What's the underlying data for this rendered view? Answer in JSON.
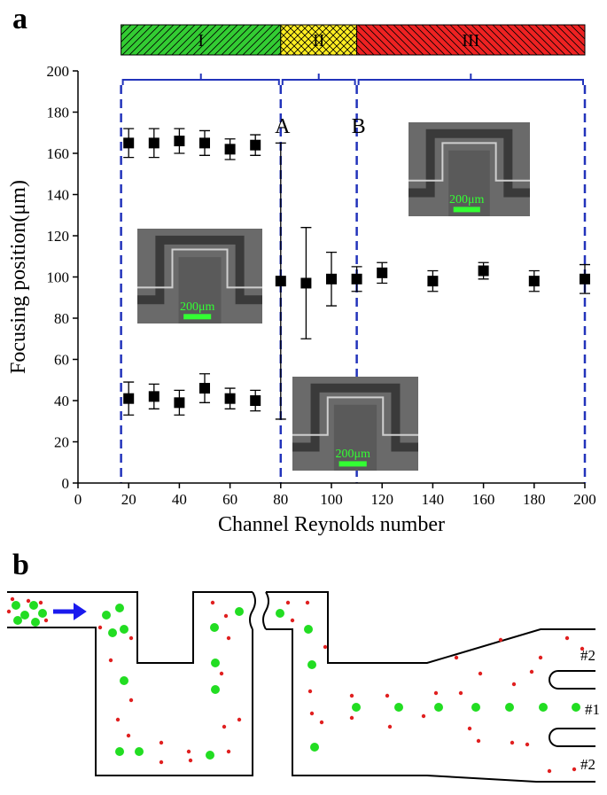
{
  "panel_labels": [
    "a",
    "b"
  ],
  "chart_data": {
    "type": "scatter",
    "x_label": "Channel Reynolds number",
    "y_label": "Focusing position(μm)",
    "xlim": [
      0,
      200
    ],
    "xticks": [
      0,
      20,
      40,
      60,
      80,
      100,
      120,
      140,
      160,
      180,
      200
    ],
    "ylim": [
      0,
      200
    ],
    "yticks": [
      0,
      20,
      40,
      60,
      80,
      100,
      120,
      140,
      160,
      180,
      200
    ],
    "series": [
      {
        "color": "#000000",
        "x": [
          20,
          30,
          40,
          50,
          60,
          70
        ],
        "values": [
          165,
          165,
          166,
          165,
          162,
          164
        ],
        "errors": [
          7,
          7,
          6,
          6,
          5,
          5
        ]
      },
      {
        "color": "#000000",
        "x": [
          80,
          90,
          100,
          110,
          120,
          140,
          160,
          180,
          200
        ],
        "values": [
          98,
          97,
          99,
          99,
          102,
          98,
          103,
          98,
          99
        ],
        "errors": [
          67,
          27,
          13,
          6,
          5,
          5,
          4,
          5,
          7
        ]
      },
      {
        "color": "#000000",
        "x": [
          20,
          30,
          40,
          50,
          60,
          70
        ],
        "values": [
          41,
          42,
          39,
          46,
          41,
          40
        ],
        "errors": [
          8,
          6,
          6,
          7,
          5,
          5
        ]
      }
    ],
    "regions": [
      {
        "label": "I",
        "color": "#33cc33",
        "from": 17,
        "to": 80
      },
      {
        "label": "II",
        "color": "#ffee22",
        "from": 80,
        "to": 110
      },
      {
        "label": "III",
        "color": "#ee2222",
        "from": 110,
        "to": 200
      }
    ],
    "markers": [
      {
        "label": "A",
        "x": 80
      },
      {
        "label": "B",
        "x": 110
      }
    ],
    "insets": [
      {
        "scale_label": "200μm"
      },
      {
        "scale_label": "200μm"
      },
      {
        "scale_label": "200μm"
      }
    ]
  },
  "diagram": {
    "outlet_labels": [
      "#2",
      "#1",
      "#2"
    ]
  }
}
